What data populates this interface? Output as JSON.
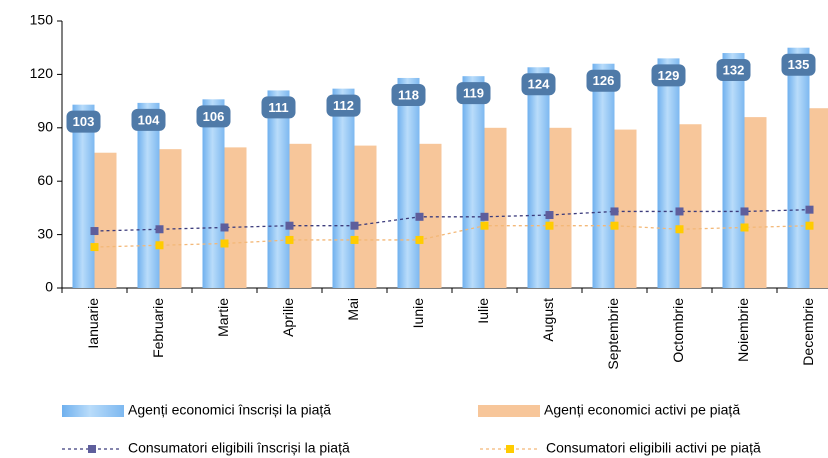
{
  "chart_data": {
    "type": "bar",
    "categories": [
      "Ianuarie",
      "Februarie",
      "Martie",
      "Aprilie",
      "Mai",
      "Iunie",
      "Iulie",
      "August",
      "Septembrie",
      "Octombrie",
      "Noiembrie",
      "Decembrie"
    ],
    "series": [
      {
        "name": "Agenți economici înscriși la piață",
        "type": "bar",
        "color": "#8ec4f4",
        "values": [
          103,
          104,
          106,
          111,
          112,
          118,
          119,
          124,
          126,
          129,
          132,
          135
        ]
      },
      {
        "name": "Agenți economici activi pe piață",
        "type": "bar",
        "color": "#f7c69a",
        "values": [
          76,
          78,
          79,
          81,
          80,
          81,
          90,
          90,
          89,
          92,
          96,
          101
        ]
      },
      {
        "name": "Consumatori eligibili înscriși la piață",
        "type": "line",
        "color": "#3c3c7c",
        "marker_color": "#5e5e9c",
        "values": [
          32,
          33,
          34,
          35,
          35,
          40,
          40,
          41,
          43,
          43,
          43,
          44
        ]
      },
      {
        "name": "Consumatori eligibili activi pe piață",
        "type": "line",
        "color": "#f3b878",
        "marker_color": "#ffcc00",
        "values": [
          23,
          24,
          25,
          27,
          27,
          27,
          35,
          35,
          35,
          33,
          34,
          35
        ]
      }
    ],
    "ylim": [
      0,
      150
    ],
    "yticks": [
      0,
      30,
      60,
      90,
      120,
      150
    ],
    "grid": false,
    "legend": "bottom"
  }
}
